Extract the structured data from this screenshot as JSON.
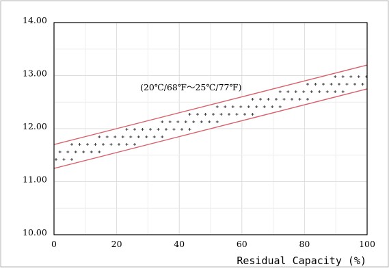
{
  "chart_data": {
    "type": "area",
    "title": "",
    "xlabel": "Residual Capacity (%)",
    "ylabel": "",
    "xlim": [
      0,
      100
    ],
    "ylim": [
      10,
      14
    ],
    "x_ticks": [
      "0",
      "20",
      "40",
      "60",
      "80",
      "100"
    ],
    "y_ticks": [
      "10.00",
      "11.00",
      "12.00",
      "13.00",
      "14.00"
    ],
    "x_tick_values": [
      0,
      20,
      40,
      60,
      80,
      100
    ],
    "y_tick_values": [
      10,
      11,
      12,
      13,
      14
    ],
    "grid": true,
    "series": [
      {
        "x": [
          0,
          100
        ],
        "values": [
          11.7,
          13.2
        ]
      },
      {
        "x": [
          0,
          100
        ],
        "values": [
          11.25,
          12.75
        ]
      }
    ],
    "band_fill": "dotted-plus",
    "line_color": "#d9606a",
    "annotation": "(20℃/68℉～25℃/77℉)"
  }
}
